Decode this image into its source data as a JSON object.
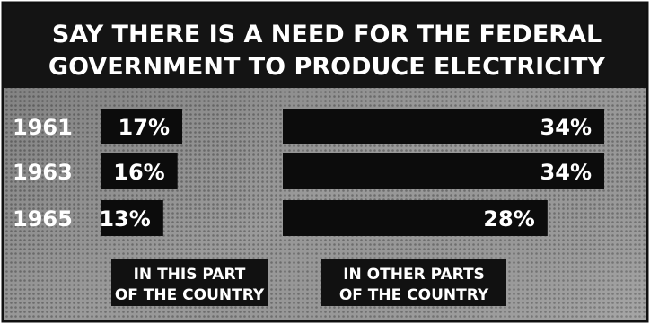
{
  "chart_data": {
    "type": "bar",
    "title_lines": [
      "SAY THERE IS A NEED FOR THE FEDERAL",
      "GOVERNMENT TO PRODUCE ELECTRICITY"
    ],
    "categories": [
      "1961",
      "1963",
      "1965"
    ],
    "series": [
      {
        "legend_lines": [
          "IN THIS PART",
          "OF THE COUNTRY"
        ],
        "values": [
          17,
          16,
          13
        ],
        "labels": [
          "17%",
          "16%",
          "13%"
        ]
      },
      {
        "legend_lines": [
          "IN OTHER PARTS",
          "OF THE COUNTRY"
        ],
        "values": [
          34,
          34,
          28
        ],
        "labels": [
          "34%",
          "34%",
          "28%"
        ]
      }
    ],
    "ylim": [
      0,
      34
    ],
    "grid": false,
    "legend_position": "bottom",
    "colors": {
      "bar": "#0c0c0c",
      "text": "#ffffff",
      "background": "#8e8e8e",
      "title_band": "#141414",
      "border": "#101010"
    }
  }
}
